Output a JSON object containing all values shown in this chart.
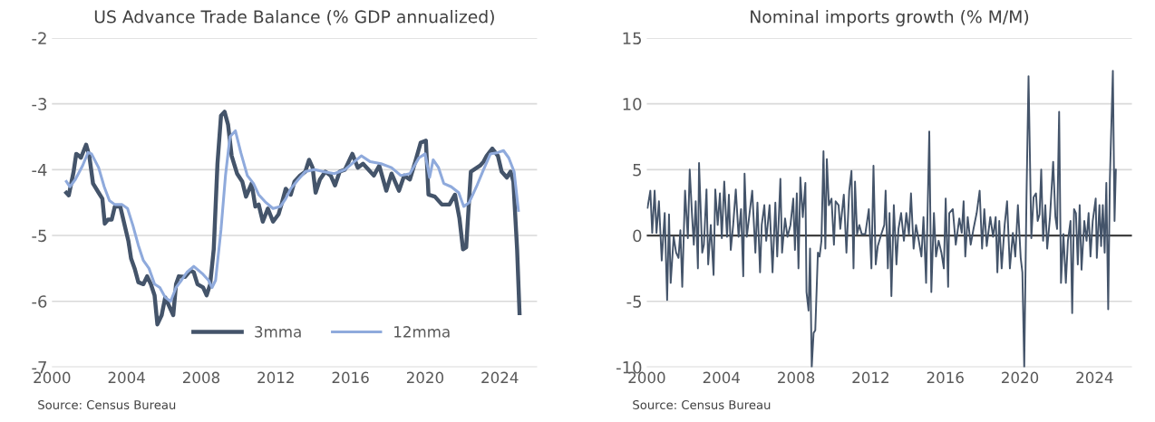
{
  "chart_data": [
    {
      "type": "line",
      "title": "US Advance Trade Balance (% GDP annualized)",
      "xlim": [
        2000,
        2026
      ],
      "xticks": [
        2000,
        2004,
        2008,
        2012,
        2016,
        2020,
        2024
      ],
      "ylim": [
        -7,
        -2
      ],
      "yticks": [
        -7,
        -6,
        -5,
        -4,
        -3,
        -2
      ],
      "grid": "y",
      "legend": "bottom",
      "annotations": [
        "Source: Census Bureau"
      ],
      "series": [
        {
          "name": "3mma",
          "color": "#44546a",
          "x": [
            2000.77,
            2000.9,
            2001.16,
            2001.3,
            2001.45,
            2001.55,
            2001.83,
            2002.0,
            2002.2,
            2002.5,
            2002.7,
            2002.83,
            2003.0,
            2003.2,
            2003.37,
            2003.66,
            2003.85,
            2004.1,
            2004.24,
            2004.43,
            2004.63,
            2004.9,
            2005.1,
            2005.3,
            2005.5,
            2005.65,
            2005.88,
            2006.07,
            2006.26,
            2006.5,
            2006.65,
            2006.8,
            2007.13,
            2007.42,
            2007.6,
            2007.8,
            2008.1,
            2008.29,
            2008.48,
            2008.67,
            2008.87,
            2009.06,
            2009.25,
            2009.44,
            2009.63,
            2009.92,
            2010.2,
            2010.4,
            2010.7,
            2010.9,
            2011.08,
            2011.3,
            2011.57,
            2011.85,
            2012.14,
            2012.33,
            2012.53,
            2012.8,
            2013.0,
            2013.3,
            2013.58,
            2013.78,
            2013.97,
            2014.13,
            2014.36,
            2014.65,
            2014.94,
            2015.17,
            2015.42,
            2015.7,
            2016.1,
            2016.39,
            2016.67,
            2016.96,
            2017.25,
            2017.54,
            2017.92,
            2018.2,
            2018.6,
            2018.88,
            2019.18,
            2019.47,
            2019.76,
            2020.04,
            2020.18,
            2020.52,
            2020.9,
            2021.3,
            2021.6,
            2021.84,
            2022.03,
            2022.2,
            2022.45,
            2022.94,
            2023.13,
            2023.3,
            2023.6,
            2023.9,
            2024.1,
            2024.38,
            2024.58,
            2024.73,
            2024.93,
            2025.06
          ],
          "values": [
            -4.35,
            -4.39,
            -4.03,
            -3.76,
            -3.79,
            -3.82,
            -3.62,
            -3.79,
            -4.21,
            -4.35,
            -4.44,
            -4.82,
            -4.76,
            -4.76,
            -4.56,
            -4.56,
            -4.79,
            -5.09,
            -5.35,
            -5.5,
            -5.71,
            -5.74,
            -5.62,
            -5.74,
            -5.91,
            -6.35,
            -6.21,
            -5.94,
            -6.06,
            -6.21,
            -5.74,
            -5.62,
            -5.63,
            -5.53,
            -5.56,
            -5.74,
            -5.79,
            -5.91,
            -5.74,
            -5.21,
            -3.91,
            -3.18,
            -3.12,
            -3.32,
            -3.79,
            -4.06,
            -4.18,
            -4.41,
            -4.21,
            -4.56,
            -4.53,
            -4.79,
            -4.59,
            -4.79,
            -4.68,
            -4.5,
            -4.29,
            -4.38,
            -4.18,
            -4.09,
            -4.03,
            -3.85,
            -3.97,
            -4.35,
            -4.15,
            -4.03,
            -4.09,
            -4.24,
            -4.03,
            -4.0,
            -3.76,
            -3.97,
            -3.91,
            -4.0,
            -4.09,
            -3.94,
            -4.32,
            -4.06,
            -4.32,
            -4.09,
            -4.15,
            -3.88,
            -3.59,
            -3.56,
            -4.38,
            -4.41,
            -4.53,
            -4.53,
            -4.38,
            -4.74,
            -5.21,
            -5.18,
            -4.03,
            -3.94,
            -3.88,
            -3.79,
            -3.68,
            -3.79,
            -4.03,
            -4.12,
            -4.03,
            -4.18,
            -5.21,
            -6.18
          ]
        },
        {
          "name": "12mma",
          "color": "#8faadc",
          "x": [
            2000.77,
            2000.96,
            2001.25,
            2001.64,
            2001.93,
            2002.12,
            2002.5,
            2002.8,
            2003.08,
            2003.37,
            2003.76,
            2004.05,
            2004.34,
            2004.63,
            2004.9,
            2005.2,
            2005.5,
            2005.78,
            2006.07,
            2006.36,
            2006.65,
            2006.94,
            2007.23,
            2007.6,
            2008.1,
            2008.39,
            2008.58,
            2008.77,
            2009.06,
            2009.3,
            2009.54,
            2009.83,
            2010.12,
            2010.47,
            2010.8,
            2011.08,
            2011.47,
            2011.85,
            2012.24,
            2012.53,
            2012.8,
            2013.2,
            2013.58,
            2014.07,
            2014.55,
            2015.13,
            2015.7,
            2016.2,
            2016.58,
            2017.06,
            2017.64,
            2018.2,
            2018.7,
            2019.18,
            2019.67,
            2020.0,
            2020.24,
            2020.43,
            2020.72,
            2021.0,
            2021.4,
            2021.8,
            2022.07,
            2022.36,
            2022.75,
            2023.13,
            2023.5,
            2023.9,
            2024.2,
            2024.48,
            2024.77,
            2025.0
          ],
          "values": [
            -4.18,
            -4.26,
            -4.15,
            -3.94,
            -3.74,
            -3.76,
            -3.97,
            -4.26,
            -4.47,
            -4.53,
            -4.53,
            -4.59,
            -4.85,
            -5.15,
            -5.38,
            -5.5,
            -5.74,
            -5.79,
            -5.94,
            -6.0,
            -5.79,
            -5.68,
            -5.56,
            -5.47,
            -5.59,
            -5.68,
            -5.79,
            -5.68,
            -4.91,
            -4.09,
            -3.5,
            -3.41,
            -3.74,
            -4.09,
            -4.21,
            -4.38,
            -4.5,
            -4.59,
            -4.56,
            -4.44,
            -4.29,
            -4.15,
            -4.03,
            -4.0,
            -4.03,
            -4.06,
            -4.0,
            -3.88,
            -3.79,
            -3.88,
            -3.91,
            -3.97,
            -4.09,
            -4.06,
            -3.82,
            -3.76,
            -4.12,
            -3.85,
            -3.97,
            -4.21,
            -4.26,
            -4.35,
            -4.56,
            -4.5,
            -4.26,
            -4.0,
            -3.76,
            -3.74,
            -3.71,
            -3.82,
            -4.03,
            -4.62
          ]
        }
      ]
    },
    {
      "type": "line",
      "title": "Nominal imports growth (% M/M)",
      "xlim": [
        2000,
        2026
      ],
      "xticks": [
        2000,
        2004,
        2008,
        2012,
        2016,
        2020,
        2024
      ],
      "ylim": [
        -10,
        15
      ],
      "yticks": [
        -10,
        -5,
        0,
        5,
        10,
        15
      ],
      "grid": "y",
      "annotations": [
        "Source: Census Bureau"
      ],
      "ref_lines": [
        {
          "axis": "y",
          "value": 0,
          "color": "#404040"
        }
      ],
      "series": [
        {
          "color": "#44546a",
          "x": [
            2000.04,
            2000.19,
            2000.29,
            2000.42,
            2000.52,
            2000.65,
            2000.8,
            2000.96,
            2001.09,
            2001.19,
            2001.28,
            2001.44,
            2001.57,
            2001.7,
            2001.8,
            2001.9,
            2002.05,
            2002.2,
            2002.3,
            2002.43,
            2002.52,
            2002.62,
            2002.74,
            2002.8,
            2002.97,
            2003.06,
            2003.2,
            2003.29,
            2003.43,
            2003.58,
            2003.67,
            2003.8,
            2003.92,
            2004.02,
            2004.15,
            2004.3,
            2004.4,
            2004.5,
            2004.63,
            2004.77,
            2004.92,
            2005.05,
            2005.17,
            2005.24,
            2005.36,
            2005.5,
            2005.65,
            2005.82,
            2005.93,
            2006.07,
            2006.16,
            2006.3,
            2006.4,
            2006.58,
            2006.74,
            2006.89,
            2006.99,
            2007.16,
            2007.25,
            2007.41,
            2007.54,
            2007.7,
            2007.85,
            2007.94,
            2008.04,
            2008.13,
            2008.23,
            2008.36,
            2008.5,
            2008.56,
            2008.67,
            2008.75,
            2008.84,
            2008.94,
            2009.03,
            2009.17,
            2009.26,
            2009.36,
            2009.47,
            2009.57,
            2009.65,
            2009.76,
            2009.9,
            2010.03,
            2010.12,
            2010.28,
            2010.37,
            2010.56,
            2010.7,
            2010.85,
            2010.97,
            2011.08,
            2011.16,
            2011.27,
            2011.39,
            2011.52,
            2011.71,
            2011.9,
            2012.04,
            2012.15,
            2012.27,
            2012.38,
            2012.57,
            2012.73,
            2012.8,
            2012.92,
            2013.01,
            2013.11,
            2013.24,
            2013.38,
            2013.49,
            2013.63,
            2013.78,
            2013.91,
            2014.05,
            2014.16,
            2014.3,
            2014.43,
            2014.58,
            2014.72,
            2014.83,
            2014.97,
            2015.14,
            2015.25,
            2015.39,
            2015.5,
            2015.64,
            2015.79,
            2015.92,
            2016.02,
            2016.15,
            2016.21,
            2016.4,
            2016.56,
            2016.75,
            2016.88,
            2016.98,
            2017.07,
            2017.2,
            2017.36,
            2017.51,
            2017.68,
            2017.84,
            2017.97,
            2018.09,
            2018.22,
            2018.41,
            2018.56,
            2018.7,
            2018.79,
            2018.89,
            2019.02,
            2019.18,
            2019.31,
            2019.46,
            2019.62,
            2019.75,
            2019.89,
            2020.04,
            2020.13,
            2020.23,
            2020.35,
            2020.46,
            2020.61,
            2020.73,
            2020.86,
            2020.95,
            2021.05,
            2021.14,
            2021.24,
            2021.36,
            2021.46,
            2021.61,
            2021.78,
            2021.9,
            2021.99,
            2022.1,
            2022.2,
            2022.33,
            2022.46,
            2022.57,
            2022.71,
            2022.8,
            2022.9,
            2023.0,
            2023.1,
            2023.2,
            2023.3,
            2023.45,
            2023.57,
            2023.68,
            2023.78,
            2023.9,
            2024.06,
            2024.12,
            2024.26,
            2024.35,
            2024.44,
            2024.54,
            2024.63,
            2024.73,
            2024.82,
            2024.98,
            2025.07,
            2025.14
          ],
          "values": [
            2.1,
            3.4,
            0.2,
            3.4,
            0.2,
            2.6,
            -1.9,
            1.7,
            -4.9,
            1.6,
            -3.6,
            -0.1,
            -1.3,
            -1.7,
            0.4,
            -3.9,
            3.4,
            -0.2,
            5.0,
            1.4,
            -0.7,
            2.6,
            -2.5,
            5.5,
            -1.3,
            -0.7,
            3.5,
            -2.2,
            0.8,
            -3.0,
            3.5,
            0.8,
            3.2,
            -0.2,
            4.1,
            -0.1,
            3.1,
            -1.1,
            0.8,
            3.5,
            -0.1,
            2.0,
            -3.1,
            4.7,
            -0.1,
            1.6,
            3.4,
            -1.3,
            2.5,
            -2.8,
            0.8,
            2.3,
            -0.4,
            2.3,
            -2.8,
            2.5,
            -1.6,
            4.3,
            -1.3,
            1.3,
            -0.1,
            0.8,
            2.8,
            -1.1,
            3.2,
            -2.5,
            4.4,
            1.4,
            4.0,
            -4.3,
            -5.7,
            -1.0,
            -10.0,
            -7.4,
            -7.2,
            -1.3,
            -1.6,
            -0.4,
            6.4,
            -1.0,
            5.8,
            2.3,
            2.8,
            -0.7,
            2.6,
            2.3,
            0.5,
            3.1,
            -1.3,
            3.4,
            4.9,
            -2.5,
            4.1,
            0.1,
            0.8,
            0.1,
            0.1,
            2.0,
            -2.5,
            5.3,
            -2.2,
            -0.8,
            0.1,
            0.8,
            3.4,
            -2.5,
            1.7,
            -4.6,
            2.3,
            -2.2,
            0.5,
            1.7,
            -0.4,
            1.7,
            0.1,
            3.2,
            -1.0,
            0.8,
            -0.4,
            -1.6,
            1.4,
            -3.6,
            7.9,
            -4.3,
            1.7,
            -1.6,
            -0.4,
            -1.3,
            -2.5,
            2.8,
            -3.9,
            1.7,
            2.0,
            -0.7,
            1.3,
            0.2,
            2.6,
            -1.6,
            1.4,
            -0.7,
            0.5,
            1.7,
            3.4,
            -1.0,
            2.0,
            -0.8,
            1.4,
            -0.1,
            1.4,
            -2.8,
            1.1,
            -2.5,
            0.8,
            2.6,
            -2.5,
            0.2,
            -1.6,
            2.3,
            -1.7,
            -2.8,
            -10.0,
            2.9,
            12.1,
            -0.2,
            2.9,
            3.2,
            1.1,
            1.6,
            5.0,
            -0.4,
            2.3,
            -1.0,
            1.4,
            5.6,
            1.4,
            0.5,
            9.4,
            -3.6,
            0.1,
            -3.6,
            -0.4,
            1.1,
            -5.9,
            2.0,
            1.7,
            -2.2,
            2.3,
            -2.6,
            1.1,
            -0.4,
            1.7,
            -1.6,
            1.1,
            2.8,
            -1.7,
            2.3,
            -0.8,
            2.3,
            -1.3,
            4.0,
            -5.6,
            4.3,
            12.5,
            1.1,
            5.0
          ]
        }
      ]
    }
  ]
}
